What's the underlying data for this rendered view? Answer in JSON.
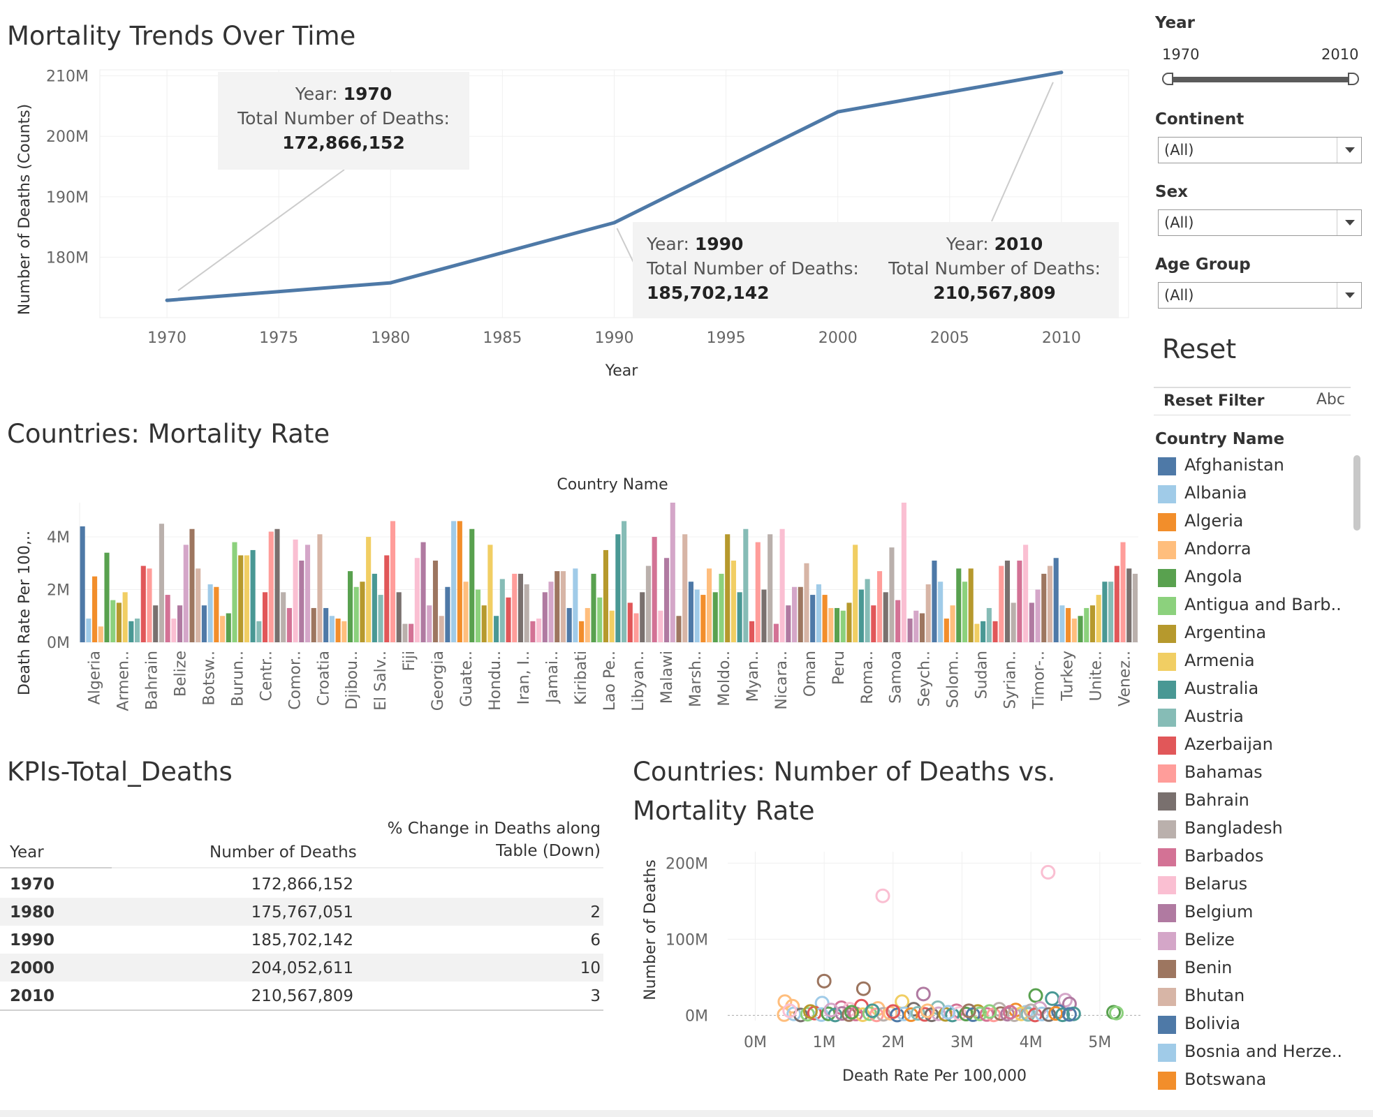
{
  "trend": {
    "title": "Mortality Trends Over Time",
    "chart_data": {
      "type": "line",
      "x": [
        1970,
        1980,
        1990,
        2000,
        2010
      ],
      "values": [
        172866152,
        175767051,
        185702142,
        204052611,
        210567809
      ],
      "xlabel": "Year",
      "ylabel": "Number of Deaths (Counts)",
      "xlim": [
        1967,
        2013
      ],
      "ylim": [
        170000000,
        211000000
      ],
      "x_ticks": [
        "1970",
        "1975",
        "1980",
        "1985",
        "1990",
        "1995",
        "2000",
        "2005",
        "2010"
      ],
      "y_ticks": [
        "180M",
        "190M",
        "200M",
        "210M"
      ],
      "color": "#4e79a7"
    },
    "tooltips": [
      {
        "year_label": "Year:",
        "year": "1970",
        "deaths_label": "Total Number of Deaths:",
        "deaths": "172,866,152"
      },
      {
        "year_label": "Year:",
        "year": "1990",
        "deaths_label": "Total Number of Deaths:",
        "deaths": "185,702,142"
      },
      {
        "year_label": "Year:",
        "year": "2010",
        "deaths_label": "Total Number of Deaths:",
        "deaths": "210,567,809"
      }
    ]
  },
  "bars": {
    "title": "Countries: Mortality Rate",
    "chart_data": {
      "type": "bar",
      "header": "Country Name",
      "ylabel": "Death Rate Per 100,..",
      "ylim": [
        0,
        5300000
      ],
      "y_ticks": [
        {
          "v": 0,
          "label": "0M"
        },
        {
          "v": 2000000,
          "label": "2M"
        },
        {
          "v": 4000000,
          "label": "4M"
        }
      ],
      "x_labels": [
        "Algeria",
        "Armen..",
        "Bahrain",
        "Belize",
        "Botsw..",
        "Burun..",
        "Centr..",
        "Comor..",
        "Croatia",
        "Djibou..",
        "El Salv..",
        "Fiji",
        "Georgia",
        "Guate..",
        "Hondu..",
        "Iran, I..",
        "Jamai..",
        "Kiribati",
        "Lao Pe..",
        "Libyan..",
        "Malawi",
        "Marsh..",
        "Moldo..",
        "Myan..",
        "Nicara..",
        "Oman",
        "Peru",
        "Roma..",
        "Samoa",
        "Seych..",
        "Solom..",
        "Sudan",
        "Syrian..",
        "Timor-..",
        "Turkey",
        "Unite..",
        "Venez.."
      ],
      "values": [
        4.4,
        0.9,
        2.5,
        0.6,
        3.4,
        1.6,
        1.5,
        1.9,
        0.8,
        0.9,
        2.9,
        2.8,
        1.4,
        4.5,
        1.8,
        0.9,
        1.4,
        3.7,
        4.3,
        2.8,
        1.4,
        2.2,
        2.1,
        1.0,
        1.1,
        3.8,
        3.3,
        3.3,
        3.5,
        0.8,
        1.9,
        4.2,
        4.3,
        1.9,
        1.3,
        3.9,
        3.1,
        3.7,
        1.3,
        4.1,
        1.3,
        1.0,
        0.9,
        0.8,
        2.7,
        2.1,
        2.3,
        4.0,
        2.6,
        1.8,
        3.3,
        4.6,
        1.9,
        0.7,
        0.7,
        3.2,
        3.8,
        1.4,
        3.1,
        1.0,
        2.1,
        4.6,
        4.6,
        2.3,
        4.3,
        2.0,
        1.4,
        3.7,
        1.0,
        2.4,
        1.7,
        2.6,
        2.6,
        2.2,
        0.8,
        0.9,
        1.9,
        2.3,
        2.7,
        2.7,
        1.3,
        2.8,
        0.8,
        1.3,
        2.6,
        1.7,
        3.5,
        1.2,
        4.1,
        4.6,
        1.5,
        1.1,
        1.9,
        2.9,
        4.0,
        1.2,
        3.2,
        5.3,
        1.0,
        4.1,
        2.3,
        2.0,
        1.8,
        2.8,
        1.9,
        2.6,
        4.1,
        3.1,
        1.9,
        4.3,
        0.8,
        3.8,
        2.0,
        4.1,
        0.7,
        4.3,
        1.4,
        2.1,
        2.1,
        3.0,
        1.8,
        2.2,
        1.8,
        1.3,
        1.3,
        1.2,
        1.5,
        3.7,
        2.0,
        2.4,
        1.4,
        2.7,
        1.9,
        3.6,
        1.6,
        5.3,
        0.9,
        1.2,
        1.1,
        2.2,
        3.1,
        2.3,
        0.9,
        1.4,
        2.8,
        2.3,
        2.8,
        0.7,
        0.8,
        1.3,
        0.8,
        2.9,
        3.1,
        1.5,
        3.1,
        3.7,
        1.5,
        2.0,
        2.6,
        2.9,
        3.2,
        1.4,
        1.3,
        0.9,
        1.0,
        1.3,
        1.4,
        1.8,
        2.3,
        2.3,
        2.9,
        3.8,
        2.8,
        2.6
      ]
    }
  },
  "kpi": {
    "title": "KPIs-Total_Deaths",
    "headers": {
      "year": "Year",
      "deaths": "Number of Deaths",
      "pct_line1": "% Change in Deaths along",
      "pct_line2": "Table (Down)"
    },
    "rows": [
      {
        "year": "1970",
        "deaths": "172,866,152",
        "pct": ""
      },
      {
        "year": "1980",
        "deaths": "175,767,051",
        "pct": "2"
      },
      {
        "year": "1990",
        "deaths": "185,702,142",
        "pct": "6"
      },
      {
        "year": "2000",
        "deaths": "204,052,611",
        "pct": "10"
      },
      {
        "year": "2010",
        "deaths": "210,567,809",
        "pct": "3"
      }
    ]
  },
  "scatter": {
    "title_line1": "Countries: Number of Deaths vs.",
    "title_line2": "Mortality Rate",
    "chart_data": {
      "type": "scatter",
      "xlabel": "Death Rate Per 100,000",
      "ylabel": "Number of Deaths",
      "xlim": [
        -400000,
        5600000
      ],
      "ylim": [
        -7000000,
        215000000
      ],
      "x_ticks": [
        {
          "v": 0,
          "label": "0M"
        },
        {
          "v": 1000000,
          "label": "1M"
        },
        {
          "v": 2000000,
          "label": "2M"
        },
        {
          "v": 3000000,
          "label": "3M"
        },
        {
          "v": 4000000,
          "label": "4M"
        },
        {
          "v": 5000000,
          "label": "5M"
        }
      ],
      "y_ticks": [
        {
          "v": 0,
          "label": "0M"
        },
        {
          "v": 100000000,
          "label": "100M"
        },
        {
          "v": 200000000,
          "label": "200M"
        }
      ],
      "points": [
        {
          "x": 1850000,
          "y": 157000000,
          "color": "#fabfd2"
        },
        {
          "x": 4250000,
          "y": 188000000,
          "color": "#fabfd2"
        },
        {
          "x": 1000000,
          "y": 45000000,
          "color": "#9c755f"
        },
        {
          "x": 1570000,
          "y": 35000000,
          "color": "#9c755f"
        },
        {
          "x": 2440000,
          "y": 28000000,
          "color": "#b07aa1"
        },
        {
          "x": 4070000,
          "y": 26000000,
          "color": "#59a14f"
        },
        {
          "x": 4310000,
          "y": 22000000,
          "color": "#499894"
        },
        {
          "x": 4500000,
          "y": 20000000,
          "color": "#d4a6c8"
        },
        {
          "x": 4560000,
          "y": 15000000,
          "color": "#b07aa1"
        },
        {
          "x": 4400000,
          "y": 5000000,
          "color": "#4e79a7"
        },
        {
          "x": 5200000,
          "y": 4000000,
          "color": "#59a14f"
        },
        {
          "x": 5240000,
          "y": 3000000,
          "color": "#8cd17d"
        },
        {
          "x": 4620000,
          "y": 2000000,
          "color": "#499894"
        },
        {
          "x": 430000,
          "y": 18000000,
          "color": "#ffbe7d"
        },
        {
          "x": 540000,
          "y": 12000000,
          "color": "#ffbe7d"
        },
        {
          "x": 970000,
          "y": 16000000,
          "color": "#a0cbe8"
        },
        {
          "x": 1250000,
          "y": 10000000,
          "color": "#d37295"
        },
        {
          "x": 1370000,
          "y": 8000000,
          "color": "#fabfd2"
        },
        {
          "x": 1540000,
          "y": 12000000,
          "color": "#e15759"
        },
        {
          "x": 1780000,
          "y": 9000000,
          "color": "#ffbe7d"
        },
        {
          "x": 2130000,
          "y": 18000000,
          "color": "#f1ce63"
        },
        {
          "x": 2300000,
          "y": 8000000,
          "color": "#79706e"
        },
        {
          "x": 2650000,
          "y": 10000000,
          "color": "#86bcb6"
        },
        {
          "x": 2920000,
          "y": 6000000,
          "color": "#d37295"
        },
        {
          "x": 3230000,
          "y": 5000000,
          "color": "#b6992d"
        },
        {
          "x": 3540000,
          "y": 8000000,
          "color": "#bab0ac"
        },
        {
          "x": 3780000,
          "y": 7000000,
          "color": "#f28e2b"
        },
        {
          "x": 3930000,
          "y": 4000000,
          "color": "#a0cbe8"
        },
        {
          "x": 4130000,
          "y": 9000000,
          "color": "#d4a6c8"
        },
        {
          "x": 420000,
          "y": 1000000,
          "color": "#ffbe7d"
        },
        {
          "x": 560000,
          "y": 2000000,
          "color": "#a0cbe8"
        },
        {
          "x": 660000,
          "y": 500000,
          "color": "#79706e"
        },
        {
          "x": 760000,
          "y": 1500000,
          "color": "#8cd17d"
        },
        {
          "x": 860000,
          "y": 3000000,
          "color": "#e15759"
        },
        {
          "x": 960000,
          "y": 1000000,
          "color": "#a0cbe8"
        },
        {
          "x": 1060000,
          "y": 2000000,
          "color": "#59a14f"
        },
        {
          "x": 1160000,
          "y": 500000,
          "color": "#499894"
        },
        {
          "x": 1260000,
          "y": 2500000,
          "color": "#b07aa1"
        },
        {
          "x": 1360000,
          "y": 1000000,
          "color": "#9c755f"
        },
        {
          "x": 1460000,
          "y": 1800000,
          "color": "#d37295"
        },
        {
          "x": 1560000,
          "y": 800000,
          "color": "#f1ce63"
        },
        {
          "x": 1660000,
          "y": 2200000,
          "color": "#8cd17d"
        },
        {
          "x": 1760000,
          "y": 600000,
          "color": "#ff9d9a"
        },
        {
          "x": 1860000,
          "y": 1400000,
          "color": "#bab0ac"
        },
        {
          "x": 1960000,
          "y": 2800000,
          "color": "#ffbe7d"
        },
        {
          "x": 2060000,
          "y": 400000,
          "color": "#4e79a7"
        },
        {
          "x": 2160000,
          "y": 1900000,
          "color": "#a0cbe8"
        },
        {
          "x": 2260000,
          "y": 900000,
          "color": "#f28e2b"
        },
        {
          "x": 2360000,
          "y": 2600000,
          "color": "#86bcb6"
        },
        {
          "x": 2460000,
          "y": 1200000,
          "color": "#e15759"
        },
        {
          "x": 2560000,
          "y": 700000,
          "color": "#79706e"
        },
        {
          "x": 2660000,
          "y": 2100000,
          "color": "#d4a6c8"
        },
        {
          "x": 2760000,
          "y": 1300000,
          "color": "#b6992d"
        },
        {
          "x": 2860000,
          "y": 500000,
          "color": "#499894"
        },
        {
          "x": 2960000,
          "y": 2400000,
          "color": "#fabfd2"
        },
        {
          "x": 3060000,
          "y": 1700000,
          "color": "#59a14f"
        },
        {
          "x": 3160000,
          "y": 900000,
          "color": "#4e79a7"
        },
        {
          "x": 3260000,
          "y": 2000000,
          "color": "#8cd17d"
        },
        {
          "x": 3360000,
          "y": 1100000,
          "color": "#d37295"
        },
        {
          "x": 3460000,
          "y": 600000,
          "color": "#ff9d9a"
        },
        {
          "x": 3560000,
          "y": 2300000,
          "color": "#9c755f"
        },
        {
          "x": 3660000,
          "y": 1500000,
          "color": "#b07aa1"
        },
        {
          "x": 3760000,
          "y": 800000,
          "color": "#bab0ac"
        },
        {
          "x": 3860000,
          "y": 2000000,
          "color": "#f1ce63"
        },
        {
          "x": 3960000,
          "y": 1200000,
          "color": "#86bcb6"
        },
        {
          "x": 4060000,
          "y": 500000,
          "color": "#e15759"
        },
        {
          "x": 4160000,
          "y": 1800000,
          "color": "#a0cbe8"
        },
        {
          "x": 4260000,
          "y": 1000000,
          "color": "#79706e"
        },
        {
          "x": 4360000,
          "y": 2500000,
          "color": "#f28e2b"
        },
        {
          "x": 4460000,
          "y": 700000,
          "color": "#499894"
        },
        {
          "x": 4560000,
          "y": 1300000,
          "color": "#4e79a7"
        },
        {
          "x": 500000,
          "y": 6000000,
          "color": "#fabfd2"
        },
        {
          "x": 800000,
          "y": 5000000,
          "color": "#b6992d"
        },
        {
          "x": 1100000,
          "y": 7000000,
          "color": "#d4a6c8"
        },
        {
          "x": 1400000,
          "y": 4000000,
          "color": "#59a14f"
        },
        {
          "x": 1700000,
          "y": 6000000,
          "color": "#499894"
        },
        {
          "x": 2000000,
          "y": 5000000,
          "color": "#e15759"
        },
        {
          "x": 2500000,
          "y": 6000000,
          "color": "#ffbe7d"
        },
        {
          "x": 2800000,
          "y": 4000000,
          "color": "#a0cbe8"
        },
        {
          "x": 3100000,
          "y": 6000000,
          "color": "#9c755f"
        },
        {
          "x": 3400000,
          "y": 5000000,
          "color": "#8cd17d"
        },
        {
          "x": 3700000,
          "y": 4000000,
          "color": "#d37295"
        },
        {
          "x": 4000000,
          "y": 6000000,
          "color": "#bab0ac"
        }
      ]
    }
  },
  "filters": {
    "year": {
      "label": "Year",
      "min_label": "1970",
      "max_label": "2010",
      "low": 0,
      "high": 1
    },
    "continent": {
      "label": "Continent",
      "value": "(All)"
    },
    "sex": {
      "label": "Sex",
      "value": "(All)"
    },
    "age_group": {
      "label": "Age Group",
      "value": "(All)"
    }
  },
  "reset": {
    "title": "Reset",
    "button_label": "Reset Filter",
    "abc": "Abc"
  },
  "legend": {
    "title": "Country Name",
    "items": [
      {
        "label": "Afghanistan",
        "color": "#4e79a7"
      },
      {
        "label": "Albania",
        "color": "#a0cbe8"
      },
      {
        "label": "Algeria",
        "color": "#f28e2b"
      },
      {
        "label": "Andorra",
        "color": "#ffbe7d"
      },
      {
        "label": "Angola",
        "color": "#59a14f"
      },
      {
        "label": "Antigua and Barb..",
        "color": "#8cd17d"
      },
      {
        "label": "Argentina",
        "color": "#b6992d"
      },
      {
        "label": "Armenia",
        "color": "#f1ce63"
      },
      {
        "label": "Australia",
        "color": "#499894"
      },
      {
        "label": "Austria",
        "color": "#86bcb6"
      },
      {
        "label": "Azerbaijan",
        "color": "#e15759"
      },
      {
        "label": "Bahamas",
        "color": "#ff9d9a"
      },
      {
        "label": "Bahrain",
        "color": "#79706e"
      },
      {
        "label": "Bangladesh",
        "color": "#bab0ac"
      },
      {
        "label": "Barbados",
        "color": "#d37295"
      },
      {
        "label": "Belarus",
        "color": "#fabfd2"
      },
      {
        "label": "Belgium",
        "color": "#b07aa1"
      },
      {
        "label": "Belize",
        "color": "#d4a6c8"
      },
      {
        "label": "Benin",
        "color": "#9d7660"
      },
      {
        "label": "Bhutan",
        "color": "#d7b5a6"
      },
      {
        "label": "Bolivia",
        "color": "#4e79a7"
      },
      {
        "label": "Bosnia and Herze..",
        "color": "#a0cbe8"
      },
      {
        "label": "Botswana",
        "color": "#f28e2b"
      }
    ]
  }
}
